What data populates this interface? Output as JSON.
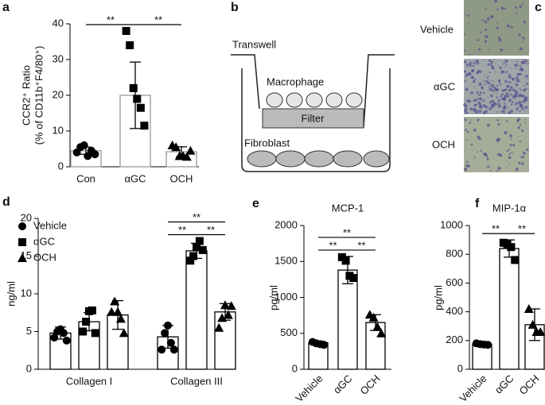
{
  "chart_data": [
    {
      "panel": "a",
      "type": "bar",
      "categories": [
        "Con",
        "αGC",
        "OCH"
      ],
      "values": [
        4.5,
        20,
        4.2
      ],
      "errors": [
        1,
        9.3,
        1.4
      ],
      "points": [
        [
          4,
          5.5,
          6,
          3,
          4.5,
          3.5
        ],
        [
          38,
          34,
          22,
          19,
          16.5,
          11.5
        ],
        [
          6,
          5.5,
          3,
          3,
          2.8,
          4.5
        ]
      ],
      "markers": [
        "circle",
        "square",
        "triangle"
      ],
      "bar_color": "#ffffff",
      "edge_color": "#999999",
      "marker_color": "#000000",
      "ylabel": [
        "CCR2⁺ Ratio",
        "(% of CD11b⁺F4/80⁺)"
      ],
      "ylim": [
        0,
        40
      ],
      "yticks": [
        0,
        10,
        20,
        30,
        40
      ],
      "comparisons": [
        {
          "label": "**",
          "from": 0,
          "to": 1
        },
        {
          "label": "**",
          "from": 1,
          "to": 2
        }
      ]
    },
    {
      "panel": "d",
      "type": "bar",
      "categories": [
        "Collagen I",
        "Collagen III"
      ],
      "bar_color": "#ffffff",
      "edge_color": "#000000",
      "marker_color": "#000000",
      "series": [
        {
          "name": "Vehicle",
          "marker": "circle",
          "values": [
            4.8,
            4.3
          ],
          "errors": [
            0.8,
            1.5
          ],
          "points": [
            [
              4.2,
              5,
              5.3,
              4.8,
              3.8
            ],
            [
              2.6,
              4.8,
              5.8,
              3.5,
              2.6
            ]
          ]
        },
        {
          "name": "αGC",
          "marker": "square",
          "values": [
            6.3,
            15.7
          ],
          "errors": [
            1.2,
            1.0
          ],
          "points": [
            [
              5,
              6.3,
              7.7,
              7.8,
              4.8
            ],
            [
              14.4,
              15,
              16.2,
              17,
              15.8
            ]
          ]
        },
        {
          "name": "OCH",
          "marker": "triangle",
          "values": [
            7.2,
            7.6
          ],
          "errors": [
            1.9,
            1.1
          ],
          "points": [
            [
              7.6,
              9,
              7.6,
              6.7,
              4.8
            ],
            [
              5.5,
              6.8,
              8.5,
              7.2,
              8.4
            ]
          ]
        }
      ],
      "ylabel": [
        "ng/ml"
      ],
      "ylim": [
        0,
        20
      ],
      "yticks": [
        0,
        5,
        10,
        15,
        20
      ],
      "comparisons": [
        {
          "label": "**",
          "category": 1,
          "from": 0,
          "to": 1
        },
        {
          "label": "**",
          "category": 1,
          "from": 1,
          "to": 2
        },
        {
          "label": "**",
          "category": 1,
          "from": 0,
          "to": 2
        }
      ]
    },
    {
      "panel": "e",
      "type": "bar",
      "title": "MCP-1",
      "categories": [
        "Vehicle",
        "αGC",
        "OCH"
      ],
      "values": [
        370,
        1380,
        650
      ],
      "errors": [
        20,
        190,
        110
      ],
      "points": [
        [
          380,
          360,
          350,
          340
        ],
        [
          1560,
          1510,
          1300,
          1270
        ],
        [
          760,
          720,
          590,
          500
        ]
      ],
      "markers": [
        "circle",
        "square",
        "triangle"
      ],
      "bar_color": "#ffffff",
      "edge_color": "#000000",
      "marker_color": "#000000",
      "xtick_rotation": -45,
      "ylabel": [
        "pg/ml"
      ],
      "ylim": [
        0,
        2000
      ],
      "yticks": [
        0,
        500,
        1000,
        1500,
        2000
      ],
      "comparisons": [
        {
          "label": "**",
          "from": 0,
          "to": 1
        },
        {
          "label": "**",
          "from": 1,
          "to": 2
        },
        {
          "label": "**",
          "from": 0,
          "to": 2
        }
      ]
    },
    {
      "panel": "f",
      "type": "bar",
      "title": "MIP-1α",
      "categories": [
        "Vehicle",
        "αGC",
        "OCH"
      ],
      "values": [
        175,
        840,
        310
      ],
      "errors": [
        8,
        60,
        110
      ],
      "points": [
        [
          180,
          175,
          172,
          170
        ],
        [
          880,
          870,
          850,
          760
        ],
        [
          420,
          310,
          260,
          260
        ]
      ],
      "markers": [
        "circle",
        "square",
        "triangle"
      ],
      "bar_color": "#ffffff",
      "edge_color": "#000000",
      "marker_color": "#000000",
      "xtick_rotation": -45,
      "ylabel": [
        "pg/ml"
      ],
      "ylim": [
        0,
        1000
      ],
      "yticks": [
        0,
        200,
        400,
        600,
        800,
        1000
      ],
      "comparisons": [
        {
          "label": "**",
          "from": 0,
          "to": 1
        },
        {
          "label": "**",
          "from": 1,
          "to": 2
        }
      ]
    }
  ],
  "diagram": {
    "panel": "b",
    "transwell": "Transwell",
    "macrophage": "Macrophage",
    "filter": "Filter",
    "fibroblast": "Fibroblast"
  },
  "images": {
    "panel": "c",
    "labels": [
      "Vehicle",
      "αGC",
      "OCH"
    ]
  }
}
